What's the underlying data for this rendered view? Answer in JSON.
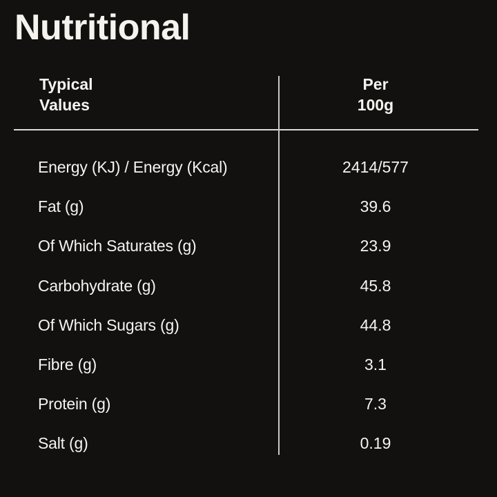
{
  "title": "Nutritional",
  "table": {
    "header": {
      "col_labels": "Typical\nValues",
      "col_values": "Per\n100g"
    },
    "rows": [
      {
        "label": "Energy (KJ) / Energy (Kcal)",
        "value": "2414/577"
      },
      {
        "label": "Fat (g)",
        "value": "39.6"
      },
      {
        "label": "Of Which Saturates (g)",
        "value": "23.9"
      },
      {
        "label": "Carbohydrate (g)",
        "value": "45.8"
      },
      {
        "label": "Of Which Sugars (g)",
        "value": "44.8"
      },
      {
        "label": "Fibre (g)",
        "value": "3.1"
      },
      {
        "label": "Protein (g)",
        "value": "7.3"
      },
      {
        "label": "Salt (g)",
        "value": "0.19"
      }
    ]
  },
  "colors": {
    "background": "#131110",
    "text": "#f6f3ef",
    "divider_horizontal": "#dedddb",
    "divider_vertical": "#c9c8c6"
  }
}
